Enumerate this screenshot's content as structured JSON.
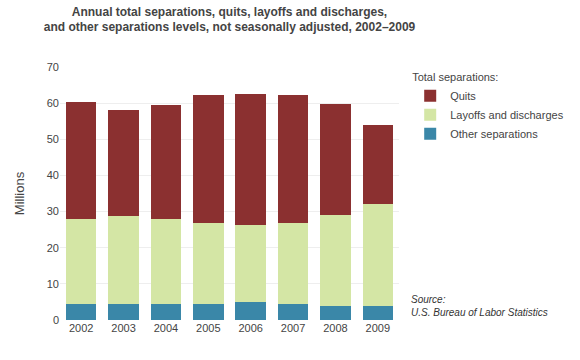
{
  "chart_data": {
    "type": "bar",
    "stacked": true,
    "title": "Annual total separations, quits, layoffs and discharges,\nand other separations levels, not seasonally adjusted, 2002–2009",
    "ylabel": "Millions",
    "legend_title": "Total separations:",
    "legend": "right",
    "annotations": [
      "Source:\nU.S. Bureau of Labor Statistics"
    ],
    "categories": [
      "2002",
      "2003",
      "2004",
      "2005",
      "2006",
      "2007",
      "2008",
      "2009"
    ],
    "series": [
      {
        "name": "Other separations",
        "color": "#3A87A8",
        "values": [
          4.5,
          4.4,
          4.5,
          4.5,
          4.9,
          4.5,
          4.0,
          4.0
        ]
      },
      {
        "name": "Layoffs and discharges",
        "color": "#D4E6A5",
        "values": [
          23.5,
          24.4,
          23.4,
          22.3,
          21.5,
          22.3,
          25.0,
          28.2
        ]
      },
      {
        "name": "Quits",
        "color": "#8B3030",
        "values": [
          32.3,
          29.2,
          31.5,
          35.4,
          36.0,
          35.4,
          30.8,
          21.8
        ]
      }
    ],
    "ylim": [
      0,
      70
    ],
    "yticks": [
      0,
      10,
      20,
      30,
      40,
      50,
      60,
      70
    ],
    "grid": true
  }
}
